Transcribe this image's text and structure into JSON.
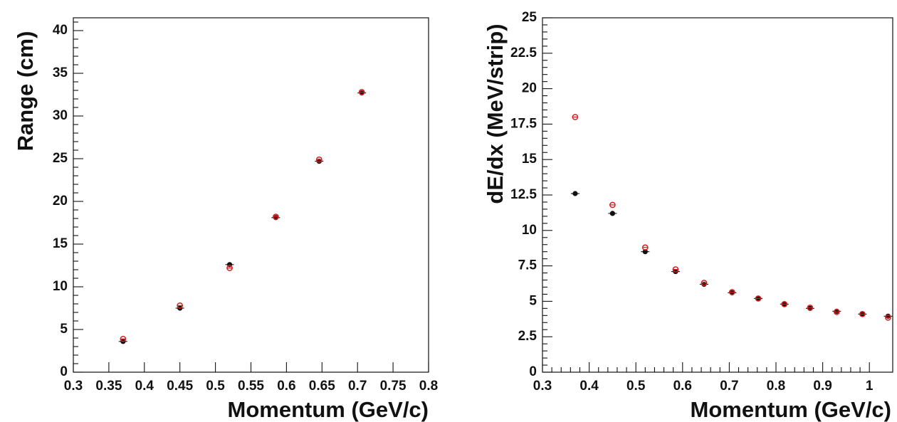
{
  "chart_data": [
    {
      "type": "scatter",
      "title": "",
      "xlabel": "Momentum (GeV/c)",
      "ylabel": "Range  (cm)",
      "xlim": [
        0.3,
        0.8
      ],
      "ylim": [
        0,
        41.5
      ],
      "grid": false,
      "x_ticks": [
        "0.3",
        "0.35",
        "0.4",
        "0.45",
        "0.5",
        "0.55",
        "0.6",
        "0.65",
        "0.7",
        "0.75",
        "0.8"
      ],
      "y_ticks": [
        "0",
        "5",
        "10",
        "15",
        "20",
        "25",
        "30",
        "35",
        "40"
      ],
      "series": [
        {
          "marker": "filled",
          "color": "#111111",
          "x": [
            0.37,
            0.45,
            0.52,
            0.585,
            0.646,
            0.706
          ],
          "y": [
            3.6,
            7.5,
            12.6,
            18.1,
            24.7,
            32.7
          ]
        },
        {
          "marker": "open",
          "color": "#d61e1e",
          "x": [
            0.37,
            0.45,
            0.52,
            0.585,
            0.646,
            0.706
          ],
          "y": [
            3.9,
            7.8,
            12.2,
            18.2,
            24.9,
            32.8
          ]
        }
      ]
    },
    {
      "type": "scatter",
      "title": "",
      "xlabel": "Momentum (GeV/c)",
      "ylabel": "dE/dx (MeV/strip)",
      "xlim": [
        0.3,
        1.05
      ],
      "ylim": [
        0,
        25
      ],
      "grid": false,
      "x_ticks": [
        "0.3",
        "0.4",
        "0.5",
        "0.6",
        "0.7",
        "0.8",
        "0.9",
        "1"
      ],
      "y_ticks": [
        "0",
        "2.5",
        "5",
        "7.5",
        "10",
        "12.5",
        "15",
        "17.5",
        "20",
        "22.5",
        "25"
      ],
      "series": [
        {
          "marker": "filled",
          "color": "#111111",
          "x": [
            0.37,
            0.45,
            0.52,
            0.585,
            0.646,
            0.706,
            0.762,
            0.818,
            0.873,
            0.93,
            0.985,
            1.04
          ],
          "y": [
            12.6,
            11.2,
            8.5,
            7.1,
            6.2,
            5.6,
            5.2,
            4.8,
            4.5,
            4.3,
            4.1,
            3.95
          ]
        },
        {
          "marker": "open",
          "color": "#d61e1e",
          "x": [
            0.37,
            0.45,
            0.52,
            0.585,
            0.646,
            0.706,
            0.762,
            0.818,
            0.873,
            0.93,
            0.985,
            1.04
          ],
          "y": [
            18.0,
            11.8,
            8.8,
            7.25,
            6.3,
            5.65,
            5.2,
            4.8,
            4.55,
            4.25,
            4.1,
            3.85
          ]
        }
      ]
    }
  ]
}
